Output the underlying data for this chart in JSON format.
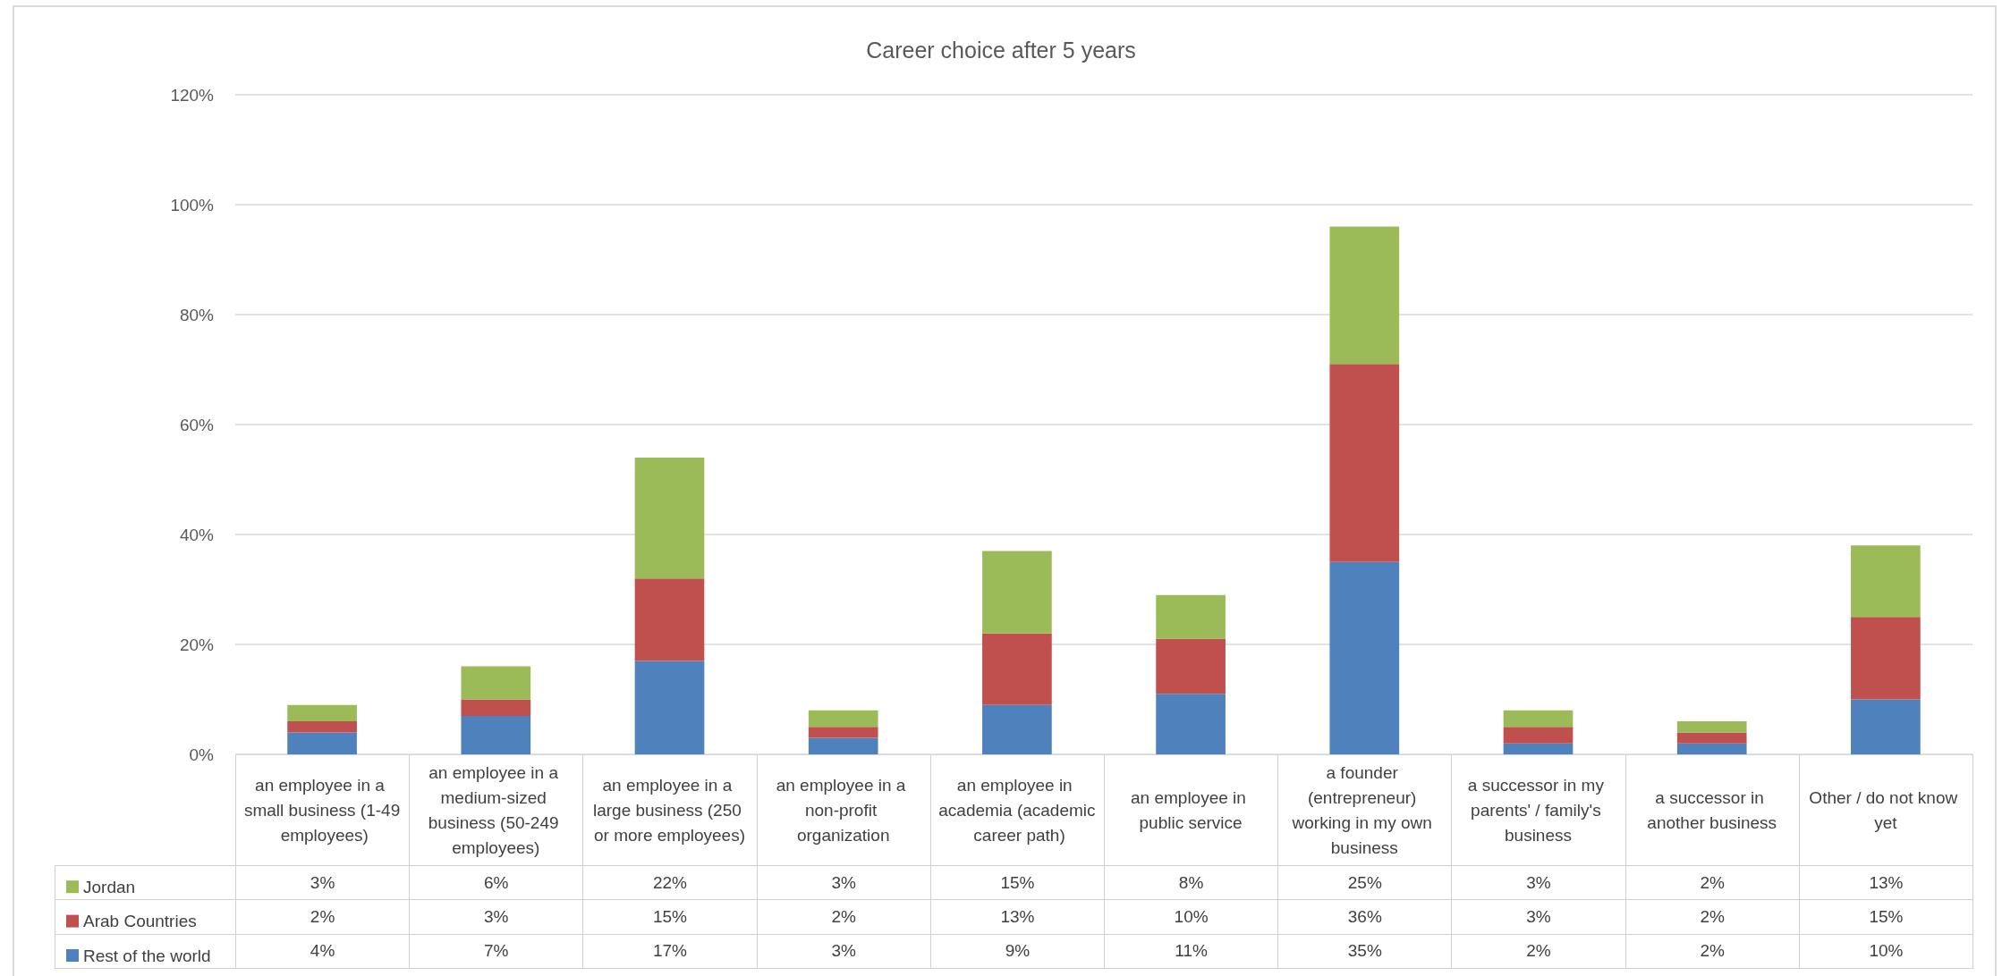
{
  "chart_data": {
    "type": "bar",
    "title": "Career choice after 5 years",
    "categories": [
      "an employee in a small business (1-49 employees)",
      "an employee in a medium-sized business (50-249 employees)",
      "an employee in a large business (250 or more employees)",
      "an employee in a non-profit organization",
      "an employee in academia (academic career path)",
      "an employee in public service",
      "a founder (entrepreneur) working in my own business",
      "a successor in my parents' / family's business",
      "a successor in another business",
      "Other / do not know yet"
    ],
    "series": [
      {
        "name": "Rest of the world",
        "color": "#4f81bd",
        "values": [
          4,
          7,
          17,
          3,
          9,
          11,
          35,
          2,
          2,
          10
        ],
        "value_labels": [
          "4%",
          "7%",
          "17%",
          "3%",
          "9%",
          "11%",
          "35%",
          "2%",
          "2%",
          "10%"
        ]
      },
      {
        "name": "Arab Countries",
        "color": "#c0504d",
        "values": [
          2,
          3,
          15,
          2,
          13,
          10,
          36,
          3,
          2,
          15
        ],
        "value_labels": [
          "2%",
          "3%",
          "15%",
          "2%",
          "13%",
          "10%",
          "36%",
          "3%",
          "2%",
          "15%"
        ]
      },
      {
        "name": "Jordan",
        "color": "#9bbb59",
        "values": [
          3,
          6,
          22,
          3,
          15,
          8,
          25,
          3,
          2,
          13
        ],
        "value_labels": [
          "3%",
          "6%",
          "22%",
          "3%",
          "15%",
          "8%",
          "25%",
          "3%",
          "2%",
          "13%"
        ]
      }
    ],
    "stacked": true,
    "ylim": [
      0,
      120
    ],
    "yticks": [
      {
        "value": 0,
        "label": "0%"
      },
      {
        "value": 20,
        "label": "20%"
      },
      {
        "value": 40,
        "label": "40%"
      },
      {
        "value": 60,
        "label": "60%"
      },
      {
        "value": 80,
        "label": "80%"
      },
      {
        "value": 100,
        "label": "100%"
      },
      {
        "value": 120,
        "label": "120%"
      }
    ],
    "grid": "y",
    "legend": "bottom left"
  }
}
